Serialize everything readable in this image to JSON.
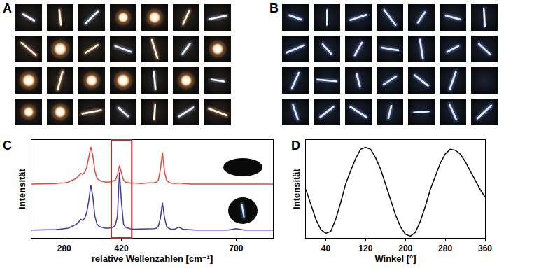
{
  "panels": [
    {
      "label": "A",
      "image_grid": {
        "rows": 4,
        "cols": 7
      }
    },
    {
      "label": "B",
      "image_grid": {
        "rows": 4,
        "cols": 7
      }
    }
  ],
  "chart_data": [
    {
      "panel_label": "C",
      "type": "line",
      "x_label": "relative Wellenzahlen [cm⁻¹]",
      "y_label": "Intensität",
      "xlim": [
        200,
        790
      ],
      "ylim": [
        0,
        10
      ],
      "xticks": [
        280,
        420,
        700
      ],
      "tick_labels": "x",
      "grid": false,
      "highlight": {
        "x": [
          395,
          445
        ]
      },
      "x": [
        200,
        210,
        220,
        230,
        240,
        250,
        260,
        270,
        280,
        290,
        300,
        305,
        310,
        315,
        320,
        325,
        330,
        335,
        340,
        345,
        350,
        355,
        360,
        365,
        370,
        380,
        390,
        400,
        405,
        410,
        415,
        420,
        425,
        430,
        435,
        440,
        450,
        460,
        470,
        480,
        490,
        500,
        505,
        510,
        515,
        520,
        525,
        530,
        535,
        540,
        550,
        560,
        570,
        580,
        590,
        600,
        620,
        640,
        660,
        680,
        700,
        720,
        740,
        760,
        780,
        790
      ],
      "series": [
        {
          "color": "#e2483e",
          "values": [
            5.5,
            5.5,
            5.5,
            5.5,
            5.5,
            5.5,
            5.55,
            5.6,
            5.6,
            5.7,
            5.9,
            6.0,
            6.1,
            6.3,
            6.6,
            6.5,
            6.7,
            7.2,
            8.2,
            9.3,
            8.4,
            6.8,
            6.1,
            5.9,
            5.8,
            5.7,
            5.7,
            5.8,
            5.9,
            6.4,
            7.4,
            6.6,
            5.9,
            5.7,
            5.65,
            5.6,
            5.6,
            5.55,
            5.55,
            5.6,
            5.6,
            5.65,
            5.7,
            5.9,
            7.0,
            8.7,
            6.8,
            5.9,
            5.7,
            5.6,
            5.55,
            5.6,
            5.55,
            5.5,
            5.5,
            5.5,
            5.5,
            5.5,
            5.5,
            5.5,
            5.55,
            5.5,
            5.5,
            5.5,
            5.5,
            5.5
          ]
        },
        {
          "color": "#3b3aa6",
          "values": [
            0.8,
            0.8,
            0.8,
            0.8,
            0.8,
            0.8,
            0.85,
            0.9,
            0.95,
            1.0,
            1.2,
            1.3,
            1.4,
            1.6,
            1.9,
            1.8,
            2.0,
            2.6,
            3.8,
            5.4,
            4.2,
            2.2,
            1.4,
            1.2,
            1.1,
            1.0,
            1.0,
            1.1,
            1.3,
            2.2,
            6.7,
            3.6,
            1.4,
            1.1,
            1.0,
            0.95,
            0.9,
            0.9,
            0.9,
            0.9,
            0.9,
            0.95,
            1.0,
            1.2,
            2.0,
            3.6,
            2.1,
            1.2,
            1.0,
            0.9,
            0.9,
            1.1,
            0.9,
            0.85,
            0.8,
            0.8,
            0.8,
            0.8,
            0.8,
            0.8,
            0.95,
            0.8,
            0.8,
            0.8,
            0.8,
            0.8
          ]
        }
      ]
    },
    {
      "panel_label": "D",
      "type": "line",
      "x_label": "Winkel [°]",
      "y_label": "Intensität",
      "xlim": [
        0,
        360
      ],
      "ylim": [
        0,
        1.05
      ],
      "xticks": [
        40,
        120,
        200,
        280,
        360
      ],
      "tick_labels": "x",
      "grid": false,
      "x": [
        0,
        10,
        20,
        30,
        40,
        50,
        60,
        70,
        80,
        90,
        100,
        110,
        120,
        130,
        140,
        150,
        160,
        170,
        180,
        190,
        200,
        210,
        220,
        230,
        240,
        250,
        260,
        270,
        280,
        290,
        300,
        310,
        320,
        330,
        340,
        350,
        360
      ],
      "series": [
        {
          "color": "#000000",
          "values": [
            0.52,
            0.36,
            0.2,
            0.09,
            0.05,
            0.07,
            0.2,
            0.38,
            0.58,
            0.72,
            0.85,
            0.95,
            0.97,
            0.95,
            0.86,
            0.74,
            0.58,
            0.42,
            0.25,
            0.12,
            0.04,
            0.02,
            0.06,
            0.18,
            0.34,
            0.52,
            0.66,
            0.8,
            0.9,
            0.95,
            0.94,
            0.9,
            0.82,
            0.72,
            0.62,
            0.52,
            0.44
          ]
        }
      ]
    }
  ]
}
